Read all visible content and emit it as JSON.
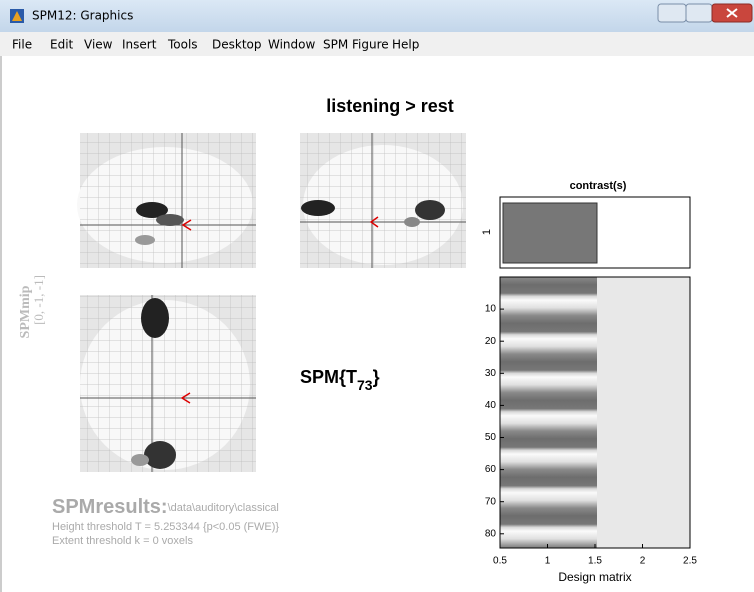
{
  "window": {
    "title": "SPM12: Graphics"
  },
  "menu": [
    "File",
    "Edit",
    "View",
    "Insert",
    "Tools",
    "Desktop",
    "Window",
    "SPM Figure",
    "Help"
  ],
  "figure": {
    "title": "listening > rest",
    "mip_label": "SPMmip",
    "mip_coords": "[0, -1, -1]",
    "stat_label": "SPM{T",
    "stat_df": "73",
    "stat_close": "}",
    "contrast": {
      "title": "contrast(s)",
      "ylabel": "1"
    },
    "design_matrix": {
      "yticks": [
        "10",
        "20",
        "30",
        "40",
        "50",
        "60",
        "70",
        "80"
      ],
      "xticks": [
        "0.5",
        "1",
        "1.5",
        "2",
        "2.5"
      ],
      "xlabel": "Design matrix"
    },
    "results": {
      "heading": "SPMresults:",
      "path": "\\data\\auditory\\classical",
      "height": "Height threshold T = 5.253344  {p<0.05 (FWE)}",
      "extent": "Extent threshold k = 0 voxels"
    }
  }
}
